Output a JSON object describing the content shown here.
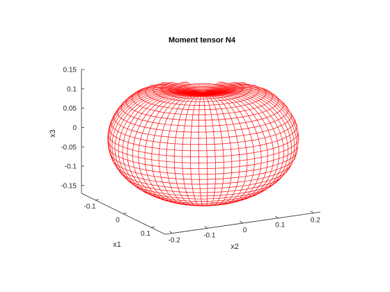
{
  "chart_data": {
    "type": "surface",
    "title": "Moment tensor N4",
    "xlabel": "x1",
    "ylabel": "x2",
    "zlabel": "x3",
    "x1_ticks": [
      "-0.1",
      "0",
      "0.1"
    ],
    "x2_ticks": [
      "-0.2",
      "-0.1",
      "0",
      "0.1",
      "0.2"
    ],
    "x3_ticks": [
      "0.15",
      "0.1",
      "0.05",
      "0",
      "-0.05",
      "-0.1",
      "-0.15"
    ],
    "x1_range": [
      -0.15,
      0.15
    ],
    "x2_range": [
      -0.22,
      0.22
    ],
    "x3_range": [
      -0.17,
      0.15
    ],
    "mesh_color": "#ff0000",
    "grid": false
  }
}
